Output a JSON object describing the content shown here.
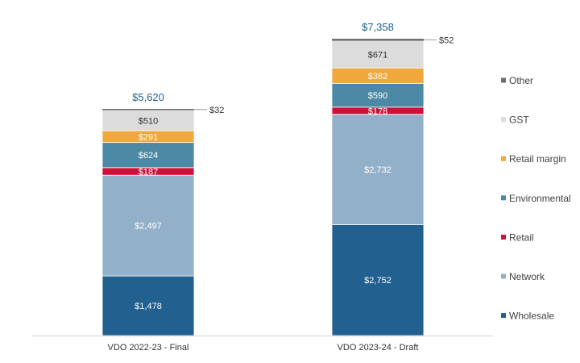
{
  "chart_data": {
    "type": "bar",
    "stacked": true,
    "title": "",
    "xlabel": "",
    "ylabel": "",
    "categories": [
      "VDO 2022-23 - Final",
      "VDO 2023-24 - Draft"
    ],
    "series": [
      {
        "name": "Wholesale",
        "color": "#22608f",
        "values": [
          1478,
          2752
        ],
        "labels": [
          "$1,478",
          "$2,752"
        ],
        "label_color": "#ffffff"
      },
      {
        "name": "Network",
        "color": "#93b0c9",
        "values": [
          2497,
          2732
        ],
        "labels": [
          "$2,497",
          "$2,732"
        ],
        "label_color": "#ffffff"
      },
      {
        "name": "Retail",
        "color": "#d0103a",
        "values": [
          187,
          178
        ],
        "labels": [
          "$187",
          "$178"
        ],
        "label_color": "#ffffff"
      },
      {
        "name": "Environmental",
        "color": "#4c89a4",
        "values": [
          624,
          590
        ],
        "labels": [
          "$624",
          "$590"
        ],
        "label_color": "#ffffff"
      },
      {
        "name": "Retail margin",
        "color": "#f0a73c",
        "values": [
          291,
          382
        ],
        "labels": [
          "$291",
          "$382"
        ],
        "label_color": "#ffffff"
      },
      {
        "name": "GST",
        "color": "#dcdcdc",
        "values": [
          510,
          671
        ],
        "labels": [
          "$510",
          "$671"
        ],
        "label_color": "#333333"
      },
      {
        "name": "Other",
        "color": "#6d6d6d",
        "values": [
          32,
          52
        ],
        "labels": [
          "$32",
          "$52"
        ],
        "label_color": "#333333",
        "callout": true
      }
    ],
    "totals": [
      5620,
      7358
    ],
    "total_labels": [
      "$5,620",
      "$7,358"
    ],
    "total_color": "#1f5f8b",
    "legend_order": [
      "Other",
      "GST",
      "Retail margin",
      "Environmental",
      "Retail",
      "Network",
      "Wholesale"
    ],
    "legend_position": "right",
    "ylim": [
      0,
      7358
    ],
    "grid": false
  }
}
